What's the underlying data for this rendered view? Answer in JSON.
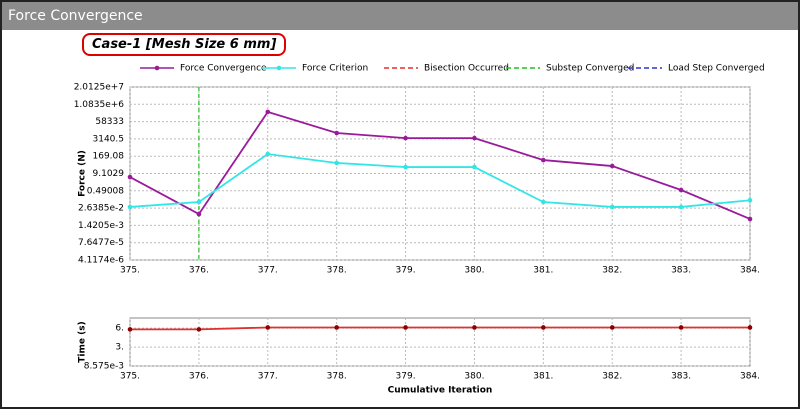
{
  "window_title": "Force Convergence",
  "case_label": "Case-1 [Mesh Size 6 mm]",
  "chart_data": [
    {
      "type": "line",
      "ylabel": "Force (N)",
      "log_y": true,
      "grid": true,
      "xlim": [
        375,
        384
      ],
      "xticks": [
        {
          "value": 375,
          "label": "375."
        },
        {
          "value": 376,
          "label": "376."
        },
        {
          "value": 377,
          "label": "377."
        },
        {
          "value": 378,
          "label": "378."
        },
        {
          "value": 379,
          "label": "379."
        },
        {
          "value": 380,
          "label": "380."
        },
        {
          "value": 381,
          "label": "381."
        },
        {
          "value": 382,
          "label": "382."
        },
        {
          "value": 383,
          "label": "383."
        },
        {
          "value": 384,
          "label": "384."
        }
      ],
      "ylim": [
        4.1174e-06,
        20125000
      ],
      "yticks": [
        {
          "value": 20125000,
          "label": "2.0125e+7"
        },
        {
          "value": 1083500,
          "label": "1.0835e+6"
        },
        58333,
        3140.5,
        169.08,
        9.1029,
        0.49008,
        {
          "value": 0.026385,
          "label": "2.6385e-2"
        },
        {
          "value": 0.0014205,
          "label": "1.4205e-3"
        },
        {
          "value": 7.6477e-05,
          "label": "7.6477e-5"
        },
        {
          "value": 4.1174e-06,
          "label": "4.1174e-6"
        }
      ],
      "x": [
        375,
        376,
        377,
        378,
        379,
        380,
        381,
        382,
        383,
        384
      ],
      "series": [
        {
          "name": "Force Convergence",
          "color": "#9b1a9b",
          "markers": true,
          "values": [
            5.0,
            0.0096,
            300000,
            8500,
            3600,
            3600,
            88,
            32,
            0.56,
            0.0042
          ]
        },
        {
          "name": "Force Criterion",
          "color": "#33e6e6",
          "markers": true,
          "values": [
            0.032,
            0.074,
            245,
            54,
            27,
            27,
            0.074,
            0.032,
            0.032,
            0.1
          ]
        }
      ],
      "events": [
        {
          "name": "Bisection Occurred",
          "color": "#e03030",
          "x": []
        },
        {
          "name": "Substep Converged",
          "color": "#20c020",
          "x": [
            376
          ]
        },
        {
          "name": "Load Step Converged",
          "color": "#3030d0",
          "x": []
        }
      ]
    },
    {
      "type": "line",
      "ylabel": "Time (s)",
      "xlabel": "Cumulative Iteration",
      "grid": true,
      "xlim": [
        375,
        384
      ],
      "xticks": [
        {
          "value": 375,
          "label": "375."
        },
        {
          "value": 376,
          "label": "376."
        },
        {
          "value": 377,
          "label": "377."
        },
        {
          "value": 378,
          "label": "378."
        },
        {
          "value": 379,
          "label": "379."
        },
        {
          "value": 380,
          "label": "380."
        },
        {
          "value": 381,
          "label": "381."
        },
        {
          "value": 382,
          "label": "382."
        },
        {
          "value": 383,
          "label": "383."
        },
        {
          "value": 384,
          "label": "384."
        }
      ],
      "ylim": [
        0.008575,
        7.6
      ],
      "yticks": [
        {
          "value": 6,
          "label": "6."
        },
        {
          "value": 3,
          "label": "3."
        },
        {
          "value": 0.008575,
          "label": "8.575e-3"
        }
      ],
      "x": [
        375,
        376,
        377,
        378,
        379,
        380,
        381,
        382,
        383,
        384
      ],
      "series": [
        {
          "color": "#8b0000",
          "line_color": "#e03030",
          "markers": true,
          "values": [
            5.8,
            5.8,
            6.1,
            6.1,
            6.1,
            6.1,
            6.1,
            6.1,
            6.1,
            6.1
          ]
        }
      ]
    }
  ]
}
